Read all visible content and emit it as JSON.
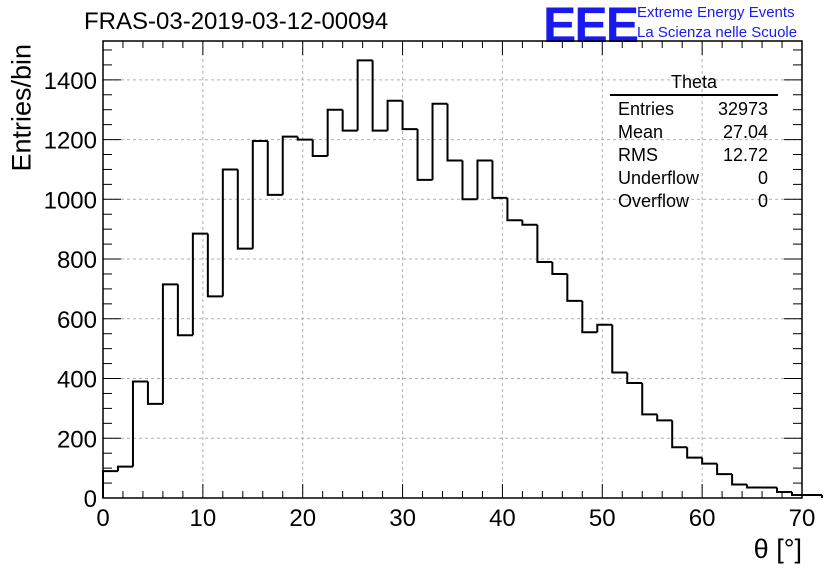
{
  "header": {
    "title": "FRAS-03-2019-03-12-00094",
    "logo": "EEE",
    "subtitle1": "Extreme Energy Events",
    "subtitle2": "La Scienza nelle Scuole"
  },
  "stats": {
    "title": "Theta",
    "rows": [
      {
        "label": "Entries",
        "value": "32973"
      },
      {
        "label": "Mean",
        "value": "27.04"
      },
      {
        "label": "RMS",
        "value": "12.72"
      },
      {
        "label": "Underflow",
        "value": "0"
      },
      {
        "label": "Overflow",
        "value": "0"
      }
    ]
  },
  "chart_data": {
    "type": "bar",
    "xlabel": "θ [°]",
    "ylabel": "Entries/bin",
    "xlim": [
      0,
      70
    ],
    "ylim": [
      0,
      1530
    ],
    "bin_width": 1.5,
    "x_ticks": [
      0,
      10,
      20,
      30,
      40,
      50,
      60,
      70
    ],
    "y_ticks": [
      0,
      200,
      400,
      600,
      800,
      1000,
      1200,
      1400
    ],
    "grid": true,
    "values": [
      90,
      105,
      390,
      315,
      715,
      545,
      885,
      675,
      1100,
      835,
      1195,
      1015,
      1210,
      1200,
      1145,
      1300,
      1230,
      1465,
      1230,
      1330,
      1235,
      1065,
      1320,
      1130,
      1000,
      1130,
      1005,
      930,
      915,
      790,
      750,
      660,
      555,
      580,
      420,
      385,
      280,
      260,
      170,
      135,
      115,
      80,
      45,
      35,
      35,
      20,
      10,
      10
    ]
  }
}
